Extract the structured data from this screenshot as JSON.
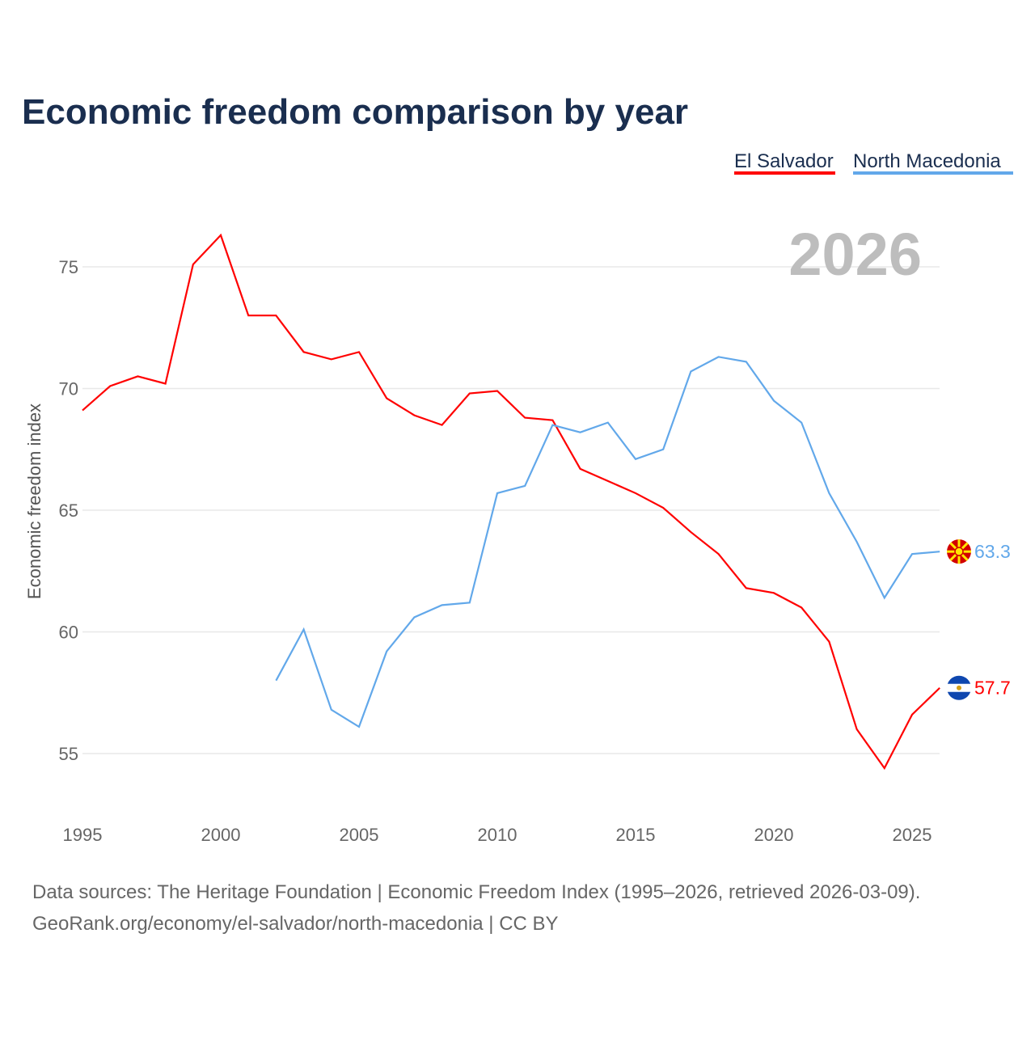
{
  "chart_data": {
    "type": "line",
    "title": "Economic freedom comparison by year",
    "ylabel": "Economic freedom index",
    "xlabel": "",
    "watermark_year": "2026",
    "xlim": [
      1995,
      2026
    ],
    "ylim": [
      53,
      77
    ],
    "x_ticks": [
      "1995",
      "2000",
      "2005",
      "2010",
      "2015",
      "2020",
      "2025"
    ],
    "y_ticks": [
      "55",
      "60",
      "65",
      "70",
      "75"
    ],
    "grid": true,
    "legend_position": "top-right",
    "series": [
      {
        "name": "El Salvador",
        "color": "#ff0000",
        "end_label": "57.7",
        "flag": "el-salvador",
        "x": [
          1995,
          1996,
          1997,
          1998,
          1999,
          2000,
          2001,
          2002,
          2003,
          2004,
          2005,
          2006,
          2007,
          2008,
          2009,
          2010,
          2011,
          2012,
          2013,
          2014,
          2015,
          2016,
          2017,
          2018,
          2019,
          2020,
          2021,
          2022,
          2023,
          2024,
          2025,
          2026
        ],
        "values": [
          69.1,
          70.1,
          70.5,
          70.2,
          75.1,
          76.3,
          73.0,
          73.0,
          71.5,
          71.2,
          71.5,
          69.6,
          68.9,
          68.5,
          69.8,
          69.9,
          68.8,
          68.7,
          66.7,
          66.2,
          65.7,
          65.1,
          64.1,
          63.2,
          61.8,
          61.6,
          61.0,
          59.6,
          56.0,
          54.4,
          56.6,
          57.7
        ]
      },
      {
        "name": "North Macedonia",
        "color": "#62a8ea",
        "end_label": "63.3",
        "flag": "north-macedonia",
        "x": [
          2002,
          2003,
          2004,
          2005,
          2006,
          2007,
          2008,
          2009,
          2010,
          2011,
          2012,
          2013,
          2014,
          2015,
          2016,
          2017,
          2018,
          2019,
          2020,
          2021,
          2022,
          2023,
          2024,
          2025,
          2026
        ],
        "values": [
          58.0,
          60.1,
          56.8,
          56.1,
          59.2,
          60.6,
          61.1,
          61.2,
          65.7,
          66.0,
          68.5,
          68.2,
          68.6,
          67.1,
          67.5,
          70.7,
          71.3,
          71.1,
          69.5,
          68.6,
          65.7,
          63.7,
          61.4,
          63.2,
          63.3
        ]
      }
    ],
    "footer": [
      "Data sources: The Heritage Foundation | Economic Freedom Index (1995–2026, retrieved 2026-03-09).",
      "GeoRank.org/economy/el-salvador/north-macedonia | CC BY"
    ]
  }
}
